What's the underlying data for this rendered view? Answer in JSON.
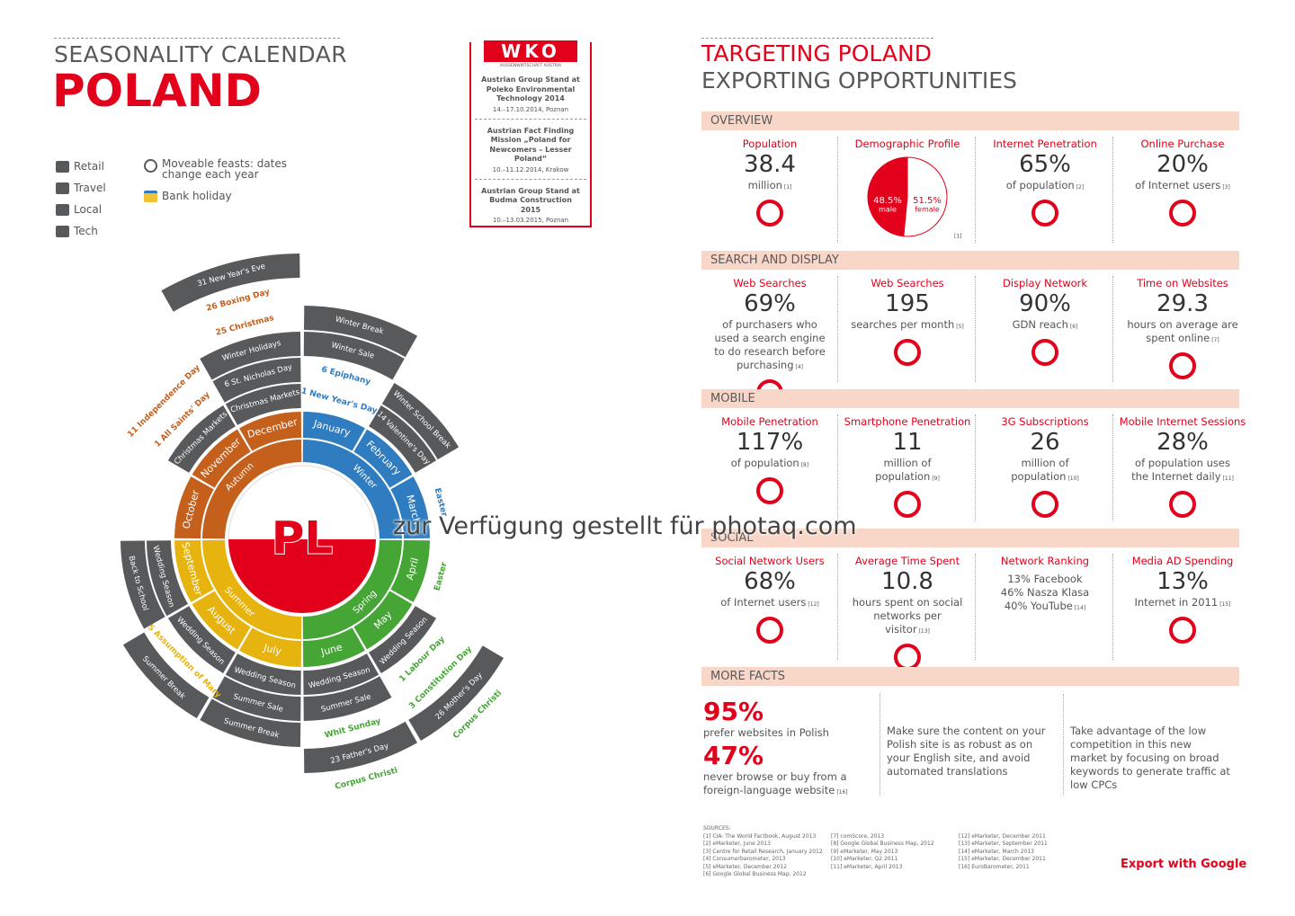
{
  "left": {
    "kicker": "SEASONALITY CALENDAR",
    "title": "POLAND",
    "legend": {
      "categories": [
        "Retail",
        "Travel",
        "Local",
        "Tech"
      ],
      "moveable": "Moveable feasts: dates change each year",
      "bank_holiday": "Bank holiday"
    },
    "wko": {
      "logo": "WKO",
      "tagline": "AUSSENWIRTSCHAFT AUSTRIA",
      "events": [
        {
          "name": "Austrian Group Stand at Poleko Environmental Technology 2014",
          "date": "14.–17.10.2014, Poznan"
        },
        {
          "name": "Austrian Fact Finding Mission „Poland for Newcomers – Lesser Poland“",
          "date": "10.–11.12.2014, Krakow"
        },
        {
          "name": "Austrian Group Stand at Budma Construction 2015",
          "date": "10.–13.03.2015, Poznan"
        }
      ]
    },
    "calendar": {
      "center": "PL",
      "seasons": [
        {
          "name": "Winter",
          "color": "#2f7dc0"
        },
        {
          "name": "Spring",
          "color": "#45a535"
        },
        {
          "name": "Summer",
          "color": "#e7b40f"
        },
        {
          "name": "Autumn",
          "color": "#c45f1c"
        }
      ],
      "months": [
        {
          "name": "January",
          "events": [
            {
              "label": "1 New Year's Day",
              "color": "#2f7dc0"
            },
            {
              "label": "6 Epiphany",
              "color": "#2f7dc0"
            },
            {
              "label": "Winter Sale",
              "band": "#58595b"
            },
            {
              "label": "Winter Break",
              "band": "#58595b"
            }
          ]
        },
        {
          "name": "February",
          "events": [
            {
              "label": "14 Valentine's Day",
              "band": "#58595b"
            },
            {
              "label": "Winter School Break",
              "band": "#58595b"
            }
          ]
        },
        {
          "name": "March",
          "events": [
            {
              "label": "Easter",
              "color": "#2f7dc0"
            }
          ]
        },
        {
          "name": "April",
          "events": [
            {
              "label": "Easter",
              "color": "#45a535"
            }
          ]
        },
        {
          "name": "May",
          "events": [
            {
              "label": "Wedding Season",
              "band": "#58595b"
            },
            {
              "label": "1 Labour Day",
              "color": "#45a535"
            },
            {
              "label": "3 Constitution Day",
              "color": "#45a535"
            },
            {
              "label": "26 Mother's Day",
              "band": "#58595b"
            },
            {
              "label": "Corpus Christi",
              "color": "#45a535"
            }
          ]
        },
        {
          "name": "June",
          "events": [
            {
              "label": "Wedding Season",
              "band": "#58595b"
            },
            {
              "label": "Summer Sale",
              "band": "#58595b"
            },
            {
              "label": "Whit Sunday",
              "color": "#45a535"
            },
            {
              "label": "23 Father's Day",
              "band": "#58595b"
            },
            {
              "label": "Corpus Christi",
              "color": "#45a535"
            }
          ]
        },
        {
          "name": "July",
          "events": [
            {
              "label": "Wedding Season",
              "band": "#58595b"
            },
            {
              "label": "Summer Sale",
              "band": "#58595b"
            },
            {
              "label": "Summer Break",
              "band": "#58595b"
            }
          ]
        },
        {
          "name": "August",
          "events": [
            {
              "label": "Wedding Season",
              "band": "#58595b"
            },
            {
              "label": "15 Assumption of Mary",
              "color": "#e7b40f"
            },
            {
              "label": "Summer Break",
              "band": "#58595b"
            }
          ]
        },
        {
          "name": "September",
          "events": [
            {
              "label": "Wedding Season",
              "band": "#58595b"
            },
            {
              "label": "Back to School",
              "band": "#58595b"
            }
          ]
        },
        {
          "name": "October",
          "events": []
        },
        {
          "name": "November",
          "events": [
            {
              "label": "Christmas Markets",
              "band": "#58595b"
            },
            {
              "label": "1 All Saints' Day",
              "color": "#c45f1c"
            },
            {
              "label": "11 Independence Day",
              "color": "#c45f1c"
            }
          ]
        },
        {
          "name": "December",
          "events": [
            {
              "label": "Christmas Markets",
              "band": "#58595b"
            },
            {
              "label": "6 St. Nicholas Day",
              "band": "#58595b"
            },
            {
              "label": "Winter Holidays",
              "band": "#58595b"
            },
            {
              "label": "25 Christmas",
              "color": "#c45f1c"
            },
            {
              "label": "26 Boxing Day",
              "color": "#c45f1c"
            },
            {
              "label": "31 New Year's Eve",
              "band": "#58595b"
            }
          ]
        }
      ]
    }
  },
  "right": {
    "title": "TARGETING POLAND",
    "subtitle": "EXPORTING OPPORTUNITIES",
    "sections": [
      {
        "title": "OVERVIEW",
        "items": [
          {
            "label": "Population",
            "value": "38.4",
            "desc": "million",
            "note": "[1]"
          },
          {
            "label": "Demographic Profile",
            "pie": [
              {
                "value": 48.5,
                "label": "48.5%",
                "name": "male",
                "color": "#e2001a"
              },
              {
                "value": 51.5,
                "label": "51.5%",
                "name": "female",
                "color": "#ffffff"
              }
            ],
            "note": "[1]"
          },
          {
            "label": "Internet Penetration",
            "value": "65%",
            "desc": "of population",
            "note": "[2]"
          },
          {
            "label": "Online Purchase",
            "value": "20%",
            "desc": "of Internet users",
            "note": "[3]"
          }
        ]
      },
      {
        "title": "SEARCH AND DISPLAY",
        "items": [
          {
            "label": "Web Searches",
            "value": "69%",
            "desc": "of purchasers who used a search engine to do research before purchasing",
            "note": "[4]"
          },
          {
            "label": "Web Searches",
            "value": "195",
            "desc": "searches per month",
            "note": "[5]"
          },
          {
            "label": "Display Network",
            "value": "90%",
            "desc": "GDN reach",
            "note": "[6]"
          },
          {
            "label": "Time on Websites",
            "value": "29.3",
            "desc": "hours on average are spent online",
            "note": "[7]"
          }
        ]
      },
      {
        "title": "MOBILE",
        "items": [
          {
            "label": "Mobile Penetration",
            "value": "117%",
            "desc": "of population",
            "note": "[8]"
          },
          {
            "label": "Smartphone Penetration",
            "value": "11",
            "desc": "million of population",
            "note": "[9]"
          },
          {
            "label": "3G Subscriptions",
            "value": "26",
            "desc": "million of population",
            "note": "[10]"
          },
          {
            "label": "Mobile Internet Sessions",
            "value": "28%",
            "desc": "of population uses the Internet daily",
            "note": "[11]"
          }
        ]
      },
      {
        "title": "SOCIAL",
        "items": [
          {
            "label": "Social Network Users",
            "value": "68%",
            "desc": "of Internet users",
            "note": "[12]"
          },
          {
            "label": "Average Time Spent",
            "value": "10.8",
            "desc": "hours spent on social networks per visitor",
            "note": "[13]"
          },
          {
            "label": "Network Ranking",
            "lines": [
              "13% Facebook",
              "46% Nasza Klasa",
              "40% YouTube"
            ],
            "note": "[14]"
          },
          {
            "label": "Media AD Spending",
            "value": "13%",
            "desc": "Internet in 2011",
            "note": "[15]"
          }
        ]
      }
    ],
    "more_facts": {
      "title": "MORE FACTS",
      "stats": [
        {
          "value": "95%",
          "text": "prefer websites in Polish"
        },
        {
          "value": "47%",
          "text": "never browse or buy from a foreign-language website",
          "note": "[16]"
        }
      ],
      "tips": [
        "Make sure the content on your Polish site is as robust as on your English site, and avoid automated translations",
        "Take advantage of the low competition in this new market by focusing on broad keywords to generate traffic at low CPCs"
      ]
    },
    "sources": {
      "title": "SOURCES:",
      "list": [
        "[1] CIA: The World Factbook, August 2013",
        "[2] eMarketer, June 2013",
        "[3] Centre for Retail Research, January 2012",
        "[4] Consumerbarometer, 2013",
        "[5] eMarketer, December 2012",
        "[6] Google Global Business Map, 2012",
        "[7] comScore, 2013",
        "[8] Google Global Business Map, 2012",
        "[9] eMarketer, May 2013",
        "[10] eMarketer, Q2 2011",
        "[11] eMarketer, April 2013",
        "[12] eMarketer, December 2011",
        "[13] eMarketer, September 2011",
        "[14] eMarketer, March 2013",
        "[15] eMarketer, December 2011",
        "[16] EuroBarometer, 2011"
      ]
    },
    "footer": "Export with Google"
  },
  "watermark": "zur Verfügung gestellt für photaq.com"
}
